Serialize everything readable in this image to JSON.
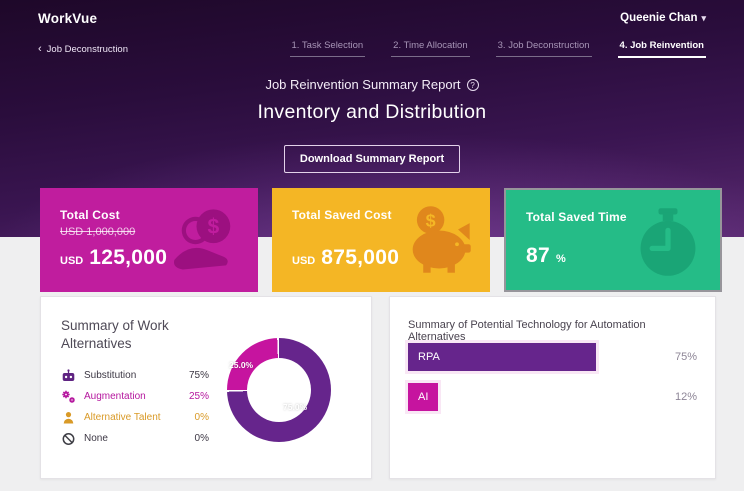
{
  "colors": {
    "hero_top": "#1e0829",
    "hero_bottom": "#58296f",
    "page_bg": "#efeff0",
    "purple": "#66258c",
    "magenta": "#c6149f",
    "amber_text": "#d99a27",
    "muted_label": "#8d8596"
  },
  "header": {
    "brand": "WorkVue",
    "user_name": "Queenie Chan",
    "caret": "▾"
  },
  "nav": {
    "back_chevron": "‹",
    "back_label": "Job Deconstruction",
    "steps": [
      {
        "label": "1. Task Selection",
        "active": false
      },
      {
        "label": "2. Time Allocation",
        "active": false
      },
      {
        "label": "3. Job Deconstruction",
        "active": false
      },
      {
        "label": "4. Job Reinvention",
        "active": true
      }
    ]
  },
  "hero": {
    "report_title": "Job Reinvention Summary Report",
    "help_glyph": "?",
    "job_title": "Inventory and Distribution",
    "download_label": "Download Summary Report"
  },
  "cards": [
    {
      "title": "Total Cost",
      "original": "USD 1,000,000",
      "currency": "USD",
      "value": "125,000",
      "icon": "money-hand-icon",
      "bg": "#c01d9e",
      "icon_color": "#9c1080"
    },
    {
      "title": "Total Saved Cost",
      "currency": "USD",
      "value": "875,000",
      "icon": "piggy-bank-icon",
      "bg": "#f4b625",
      "icon_color": "#e0871c"
    },
    {
      "title": "Total Saved Time",
      "value": "87",
      "unit": "%",
      "icon": "stopwatch-icon",
      "bg": "#25bc87",
      "icon_color": "#1aa576"
    }
  ],
  "work_panel": {
    "title": "Summary of Work Alternatives",
    "legend": [
      {
        "label": "Substitution",
        "pct": "75%",
        "icon": "robot-icon"
      },
      {
        "label": "Augmentation",
        "pct": "25%",
        "icon": "gears-icon"
      },
      {
        "label": "Alternative Talent",
        "pct": "0%",
        "icon": "person-icon"
      },
      {
        "label": "None",
        "pct": "0%",
        "icon": "ban-icon"
      }
    ],
    "donut_labels": {
      "major": "75.0%",
      "minor": "25.0%"
    }
  },
  "tech_panel": {
    "title": "Summary of Potential Technology for Automation Alternatives",
    "bars": [
      {
        "label": "RPA",
        "pct_label": "75%"
      },
      {
        "label": "AI",
        "pct_label": "12%"
      }
    ]
  },
  "chart_data": [
    {
      "type": "pie",
      "title": "Summary of Work Alternatives",
      "labels": [
        "Substitution",
        "Augmentation",
        "Alternative Talent",
        "None"
      ],
      "values": [
        75,
        25,
        0,
        0
      ],
      "unit": "%",
      "hole": 0.62,
      "colors": [
        "#66258c",
        "#c6149f",
        "#d99a27",
        "#444444"
      ],
      "annotations": [
        "75.0%",
        "25.0%"
      ],
      "legend_position": "left"
    },
    {
      "type": "bar",
      "orientation": "horizontal",
      "title": "Summary of Potential Technology for Automation Alternatives",
      "categories": [
        "RPA",
        "AI"
      ],
      "values": [
        75,
        12
      ],
      "unit": "%",
      "xlim": [
        0,
        100
      ],
      "colors": [
        "#66258c",
        "#c6149f"
      ],
      "grid": false
    }
  ]
}
